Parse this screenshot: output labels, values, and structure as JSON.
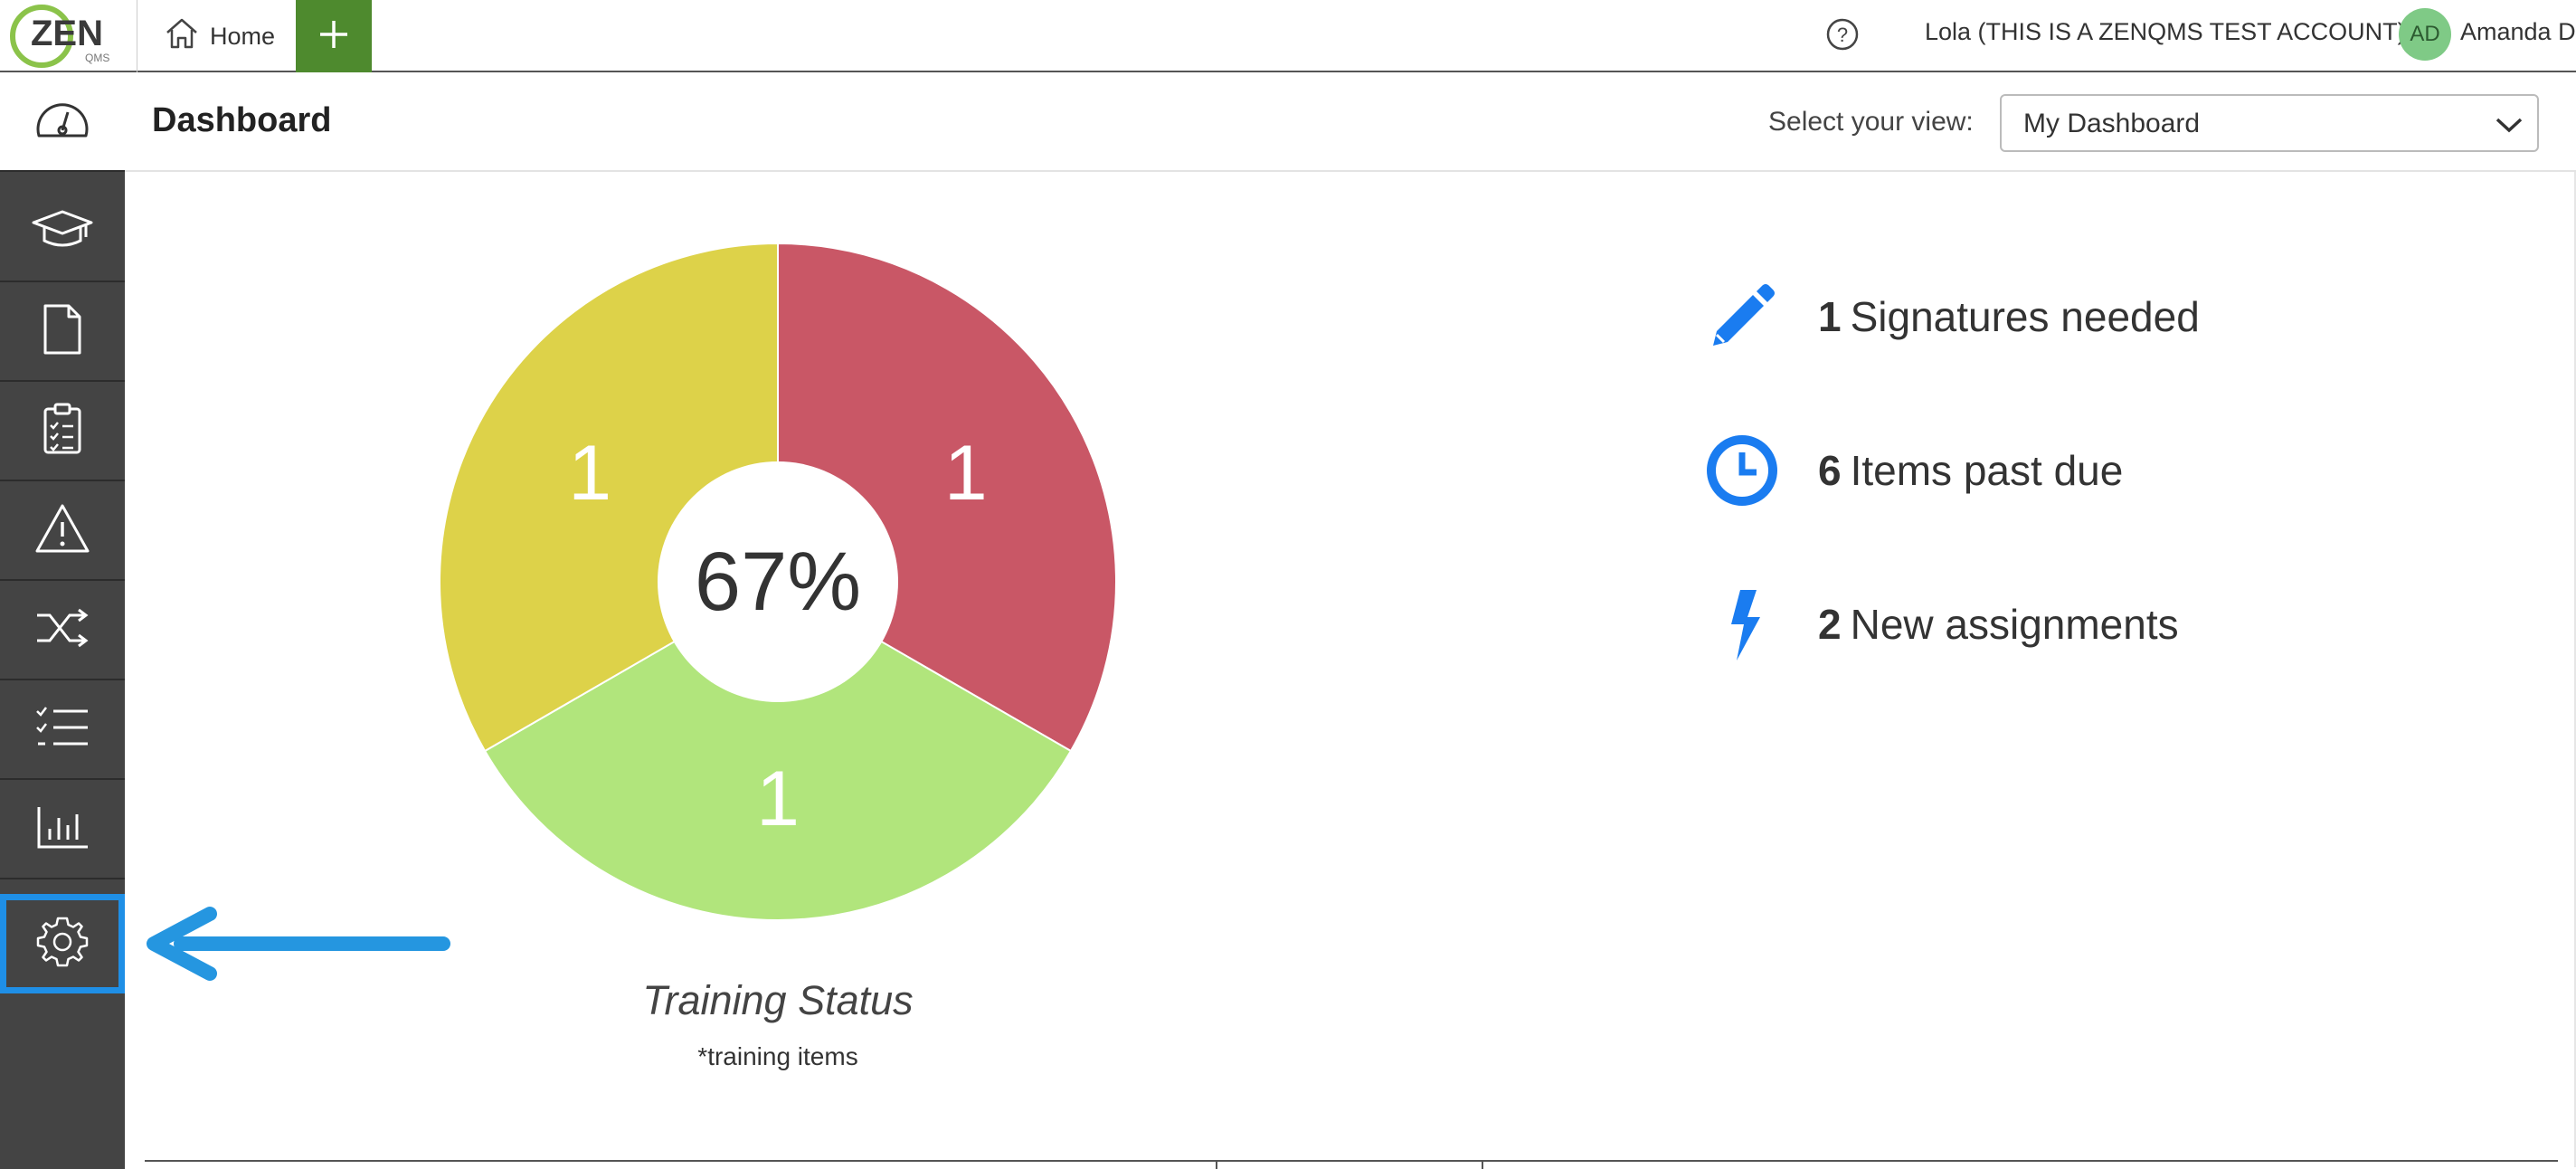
{
  "topbar": {
    "logo_text": "ZEN",
    "logo_sub": "QMS",
    "home_label": "Home",
    "add_label": "+",
    "help_label": "?",
    "account_name": "Lola (THIS IS A ZENQMS TEST ACCOUNT)",
    "avatar_initials": "AD",
    "user_name": "Amanda D"
  },
  "sidebar": {
    "items": [
      {
        "name": "dashboard",
        "icon": "gauge-icon"
      },
      {
        "name": "training",
        "icon": "graduation-cap-icon"
      },
      {
        "name": "documents",
        "icon": "document-icon"
      },
      {
        "name": "checklists",
        "icon": "clipboard-icon"
      },
      {
        "name": "issues",
        "icon": "warning-icon"
      },
      {
        "name": "workflows",
        "icon": "shuffle-icon"
      },
      {
        "name": "lists",
        "icon": "checklist-icon"
      },
      {
        "name": "reports",
        "icon": "bar-chart-icon"
      },
      {
        "name": "settings",
        "icon": "gear-icon",
        "highlighted": true
      }
    ]
  },
  "header": {
    "title": "Dashboard",
    "view_label": "Select your view:",
    "view_value": "My Dashboard"
  },
  "chart_data": {
    "type": "pie",
    "title": "Training Status",
    "subtitle": "*training items",
    "center_label": "67%",
    "slices": [
      {
        "label": "1",
        "value": 1,
        "color": "#c95766"
      },
      {
        "label": "1",
        "value": 1,
        "color": "#b1e57c"
      },
      {
        "label": "1",
        "value": 1,
        "color": "#ddd249"
      }
    ]
  },
  "stats": [
    {
      "number": "1",
      "label": "Signatures needed",
      "icon": "pencil-icon",
      "color": "#1a7cf0"
    },
    {
      "number": "6",
      "label": "Items past due",
      "icon": "clock-icon",
      "color": "#1a7cf0"
    },
    {
      "number": "2",
      "label": "New assignments",
      "icon": "lightning-icon",
      "color": "#1a7cf0"
    }
  ],
  "annotation": {
    "arrow_color": "#2596e0"
  }
}
